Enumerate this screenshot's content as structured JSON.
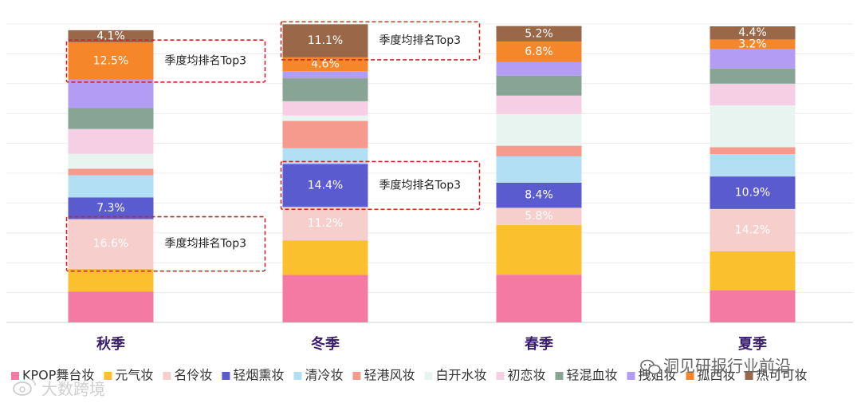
{
  "chart_data": {
    "type": "bar",
    "stacked": true,
    "categories": [
      "秋季",
      "冬季",
      "春季",
      "夏季"
    ],
    "ylim": [
      0,
      100
    ],
    "series": [
      {
        "name": "KPOP舞台妆",
        "color": "#f47aa3",
        "values": [
          10.3,
          15.9,
          16.0,
          10.7
        ]
      },
      {
        "name": "元气妆",
        "color": "#fbc02d",
        "values": [
          7.7,
          11.6,
          16.6,
          13.1
        ]
      },
      {
        "name": "名伶妆",
        "color": "#f6cfcc",
        "values": [
          16.6,
          11.2,
          5.8,
          14.2
        ]
      },
      {
        "name": "轻烟熏妆",
        "color": "#5b5bd0",
        "values": [
          7.3,
          14.4,
          8.4,
          10.9
        ]
      },
      {
        "name": "清冷妆",
        "color": "#b3dff5",
        "values": [
          7.4,
          5.3,
          8.8,
          7.5
        ]
      },
      {
        "name": "轻港风妆",
        "color": "#f59a8d",
        "values": [
          2.2,
          9.1,
          3.6,
          2.3
        ]
      },
      {
        "name": "白开水妆",
        "color": "#e7f4ef",
        "values": [
          5.0,
          1.8,
          10.6,
          14.0
        ]
      },
      {
        "name": "初恋妆",
        "color": "#f7cfe5",
        "values": [
          8.3,
          4.8,
          6.2,
          7.3
        ]
      },
      {
        "name": "轻混血妆",
        "color": "#87a494",
        "values": [
          7.0,
          7.7,
          6.7,
          5.1
        ]
      },
      {
        "name": "拽姐妆",
        "color": "#b39cf4",
        "values": [
          9.5,
          2.4,
          4.6,
          6.5
        ]
      },
      {
        "name": "孤西妆",
        "color": "#f5872a",
        "values": [
          12.5,
          4.6,
          6.8,
          3.2
        ]
      },
      {
        "name": "热可可妆",
        "color": "#9a6848",
        "values": [
          4.1,
          11.1,
          5.2,
          4.4
        ]
      }
    ],
    "data_labels": [
      {
        "category": "秋季",
        "series": "热可可妆",
        "text": "4.1%"
      },
      {
        "category": "秋季",
        "series": "孤西妆",
        "text": "12.5%"
      },
      {
        "category": "秋季",
        "series": "轻烟熏妆",
        "text": "7.3%"
      },
      {
        "category": "秋季",
        "series": "名伶妆",
        "text": "16.6%"
      },
      {
        "category": "冬季",
        "series": "热可可妆",
        "text": "11.1%"
      },
      {
        "category": "冬季",
        "series": "孤西妆",
        "text": "4.6%"
      },
      {
        "category": "冬季",
        "series": "轻烟熏妆",
        "text": "14.4%"
      },
      {
        "category": "冬季",
        "series": "名伶妆",
        "text": "11.2%"
      },
      {
        "category": "春季",
        "series": "热可可妆",
        "text": "5.2%"
      },
      {
        "category": "春季",
        "series": "孤西妆",
        "text": "6.8%"
      },
      {
        "category": "春季",
        "series": "轻烟熏妆",
        "text": "8.4%"
      },
      {
        "category": "春季",
        "series": "名伶妆",
        "text": "5.8%"
      },
      {
        "category": "夏季",
        "series": "热可可妆",
        "text": "4.4%"
      },
      {
        "category": "夏季",
        "series": "孤西妆",
        "text": "3.2%"
      },
      {
        "category": "夏季",
        "series": "轻烟熏妆",
        "text": "10.9%"
      },
      {
        "category": "夏季",
        "series": "名伶妆",
        "text": "14.2%"
      }
    ],
    "annotations": [
      {
        "category": "秋季",
        "series": "孤西妆",
        "text": "季度均排名Top3"
      },
      {
        "category": "秋季",
        "series": "名伶妆",
        "text": "季度均排名Top3"
      },
      {
        "category": "冬季",
        "series": "热可可妆",
        "text": "季度均排名Top3"
      },
      {
        "category": "冬季",
        "series": "轻烟熏妆",
        "text": "季度均排名Top3"
      }
    ],
    "legend_position": "bottom",
    "grid": true
  },
  "watermarks": {
    "wechat": {
      "icon": "wechat-icon",
      "text": "洞见研报行业前沿"
    },
    "weibo": {
      "icon": "weibo-icon",
      "text": "大数跨境"
    }
  }
}
